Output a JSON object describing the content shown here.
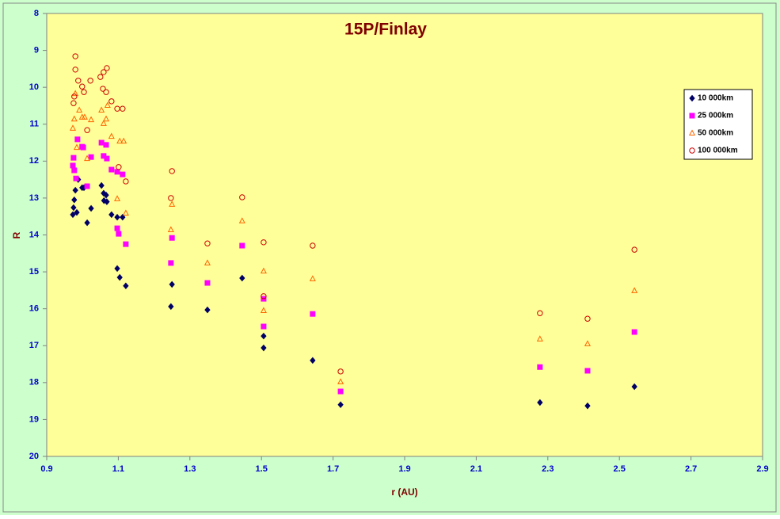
{
  "chart_data": {
    "type": "scatter",
    "title": "15P/Finlay",
    "x_label": "r (AU)",
    "y_label": "R",
    "xlim": [
      0.9,
      2.9
    ],
    "xticks": [
      0.9,
      1.1,
      1.3,
      1.5,
      1.7,
      1.9,
      2.1,
      2.3,
      2.5,
      2.7,
      2.9
    ],
    "ylim": [
      8,
      20
    ],
    "yticks": [
      8,
      9,
      10,
      11,
      12,
      13,
      14,
      15,
      16,
      17,
      18,
      19,
      20
    ],
    "y_inverted": true,
    "grid": false,
    "legend": "upper right",
    "series": [
      {
        "name": "10 000km",
        "color": "#000066",
        "marker": "diamond",
        "filled": true,
        "x": [
          0.973,
          0.975,
          0.977,
          0.98,
          0.984,
          0.988,
          0.999,
          1.004,
          1.013,
          1.024,
          1.053,
          1.059,
          1.06,
          1.066,
          1.068,
          1.081,
          1.097,
          1.112,
          1.097,
          1.104,
          1.121,
          1.25,
          1.247,
          1.349,
          1.446,
          1.506,
          1.506,
          1.643,
          1.721,
          2.278,
          2.411,
          2.542
        ],
        "values": [
          13.45,
          13.26,
          13.05,
          12.79,
          13.39,
          12.5,
          12.72,
          12.72,
          13.67,
          13.28,
          12.66,
          12.87,
          13.07,
          12.92,
          13.1,
          13.45,
          13.52,
          13.52,
          14.91,
          15.15,
          15.38,
          15.34,
          15.94,
          16.03,
          15.17,
          16.74,
          17.06,
          17.4,
          18.6,
          18.54,
          18.63,
          18.11
        ]
      },
      {
        "name": "25 000km",
        "color": "#ff00ff",
        "marker": "square",
        "filled": true,
        "x": [
          0.973,
          0.975,
          0.977,
          0.982,
          0.986,
          0.999,
          1.002,
          1.013,
          1.024,
          1.053,
          1.059,
          1.066,
          1.068,
          1.081,
          1.097,
          1.101,
          1.097,
          1.112,
          1.121,
          1.25,
          1.247,
          1.349,
          1.446,
          1.506,
          1.506,
          1.643,
          1.721,
          2.278,
          2.411,
          2.542
        ],
        "values": [
          12.12,
          11.91,
          12.25,
          12.47,
          11.41,
          11.61,
          11.63,
          12.68,
          11.89,
          11.5,
          11.86,
          11.56,
          11.93,
          12.23,
          13.82,
          13.97,
          12.29,
          12.36,
          14.25,
          14.08,
          14.76,
          15.3,
          14.29,
          15.73,
          16.48,
          16.14,
          18.24,
          17.58,
          17.68,
          16.63
        ]
      },
      {
        "name": "50 000km",
        "color": "#ff6600",
        "marker": "triangle",
        "filled": false,
        "x": [
          0.973,
          0.977,
          0.98,
          0.984,
          0.991,
          0.999,
          1.006,
          1.013,
          1.024,
          1.053,
          1.059,
          1.066,
          1.07,
          1.081,
          1.097,
          1.104,
          1.115,
          1.121,
          1.25,
          1.247,
          1.349,
          1.446,
          1.506,
          1.506,
          1.643,
          1.721,
          2.278,
          2.411,
          2.542
        ],
        "values": [
          11.11,
          10.86,
          10.17,
          11.63,
          10.62,
          10.81,
          10.81,
          11.93,
          10.88,
          10.62,
          10.98,
          10.86,
          10.49,
          11.33,
          13.02,
          11.46,
          11.46,
          13.41,
          13.17,
          13.86,
          14.76,
          13.62,
          14.98,
          16.05,
          15.19,
          17.98,
          16.82,
          16.95,
          15.51
        ]
      },
      {
        "name": "100 000km",
        "color": "#cc0000",
        "marker": "circle",
        "filled": false,
        "x": [
          0.98,
          0.98,
          0.975,
          0.977,
          0.988,
          0.999,
          1.004,
          1.022,
          1.013,
          1.05,
          1.059,
          1.068,
          1.057,
          1.066,
          1.081,
          1.097,
          1.101,
          1.112,
          1.121,
          1.25,
          1.247,
          1.349,
          1.446,
          1.506,
          1.506,
          1.643,
          1.721,
          2.278,
          2.411,
          2.542
        ],
        "values": [
          9.16,
          9.52,
          10.43,
          10.25,
          9.82,
          9.98,
          10.13,
          9.82,
          11.16,
          9.72,
          9.59,
          9.48,
          10.04,
          10.13,
          10.38,
          10.58,
          12.16,
          10.58,
          12.55,
          12.27,
          13.0,
          14.23,
          12.98,
          14.2,
          15.66,
          14.29,
          17.7,
          16.12,
          16.27,
          14.4
        ]
      }
    ]
  }
}
